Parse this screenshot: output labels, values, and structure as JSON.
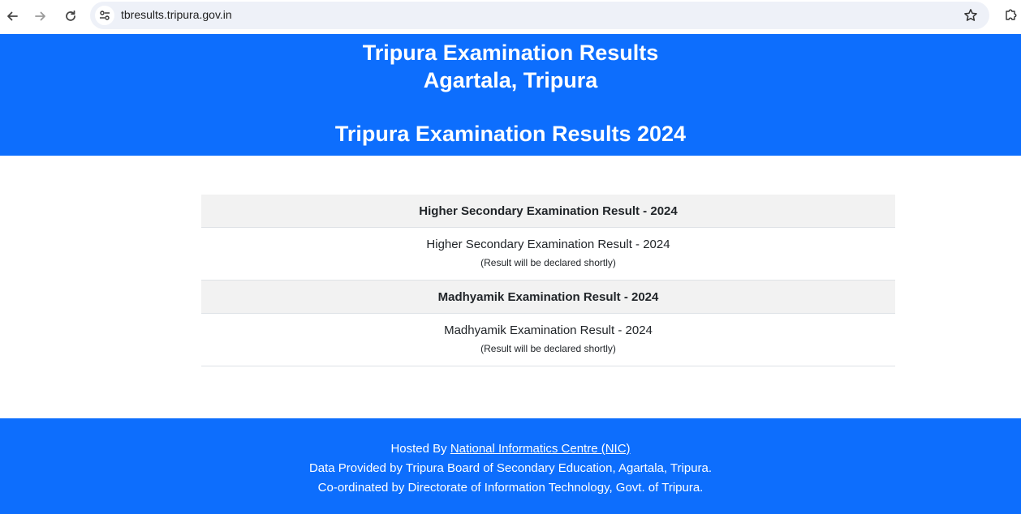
{
  "browser": {
    "url": "tbresults.tripura.gov.in"
  },
  "header": {
    "title_line1": "Tripura Examination Results",
    "title_line2": "Agartala, Tripura",
    "subtitle": "Tripura Examination Results 2024"
  },
  "results": [
    {
      "heading": "Higher Secondary Examination Result - 2024",
      "link": "Higher Secondary Examination Result - 2024",
      "note": "(Result will be declared shortly)"
    },
    {
      "heading": "Madhyamik Examination Result - 2024",
      "link": "Madhyamik Examination Result - 2024",
      "note": "(Result will be declared shortly)"
    }
  ],
  "footer": {
    "hosted_prefix": "Hosted By ",
    "hosted_link": "National Informatics Centre (NIC)",
    "line2": "Data Provided by Tripura Board of Secondary Education, Agartala, Tripura.",
    "line3": "Co-ordinated by Directorate of Information Technology, Govt. of Tripura."
  },
  "colors": {
    "brand_blue": "#0d6efd",
    "row_header_bg": "#f2f2f2"
  }
}
